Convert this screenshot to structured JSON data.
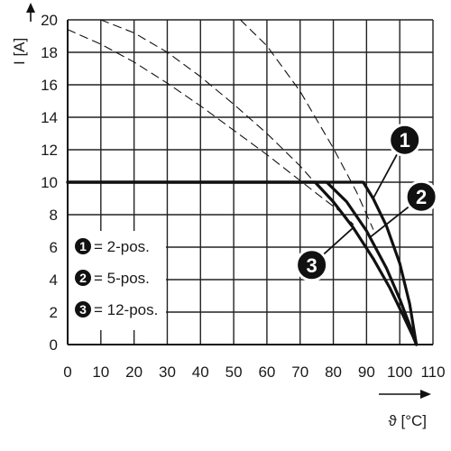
{
  "chart_data": {
    "type": "line",
    "xlabel": "ϑ [°C]",
    "ylabel": "I [A]",
    "xlim": [
      0,
      110
    ],
    "ylim": [
      0,
      20
    ],
    "x_ticks": [
      "0",
      "10",
      "20",
      "30",
      "40",
      "50",
      "60",
      "70",
      "80",
      "90",
      "100",
      "110"
    ],
    "y_ticks": [
      "0",
      "2",
      "4",
      "6",
      "8",
      "10",
      "12",
      "14",
      "16",
      "18",
      "20"
    ],
    "grid": true,
    "legend_placement": "bottom-left",
    "legend": [
      {
        "marker": "1",
        "label": "= 2-pos."
      },
      {
        "marker": "2",
        "label": "= 5-pos."
      },
      {
        "marker": "3",
        "label": "= 12-pos."
      }
    ],
    "series": [
      {
        "marker": "1",
        "style": "solid",
        "x": [
          0,
          89,
          92,
          96,
          100,
          103,
          105
        ],
        "y": [
          10,
          10,
          9,
          7.3,
          5,
          2.5,
          0
        ]
      },
      {
        "marker": "2",
        "style": "solid",
        "x": [
          0,
          78,
          84,
          90,
          96,
          100,
          103,
          105
        ],
        "y": [
          10,
          10,
          8.8,
          7,
          4.7,
          2.8,
          1.2,
          0
        ]
      },
      {
        "marker": "3",
        "style": "solid",
        "x": [
          0,
          74.5,
          80,
          86,
          92,
          97,
          101,
          104,
          105
        ],
        "y": [
          10,
          10,
          8.8,
          7.2,
          5.3,
          3.5,
          1.8,
          0.5,
          0
        ]
      },
      {
        "marker": "1",
        "style": "dashed",
        "x": [
          52,
          60,
          70,
          80,
          87,
          92
        ],
        "y": [
          20,
          18.4,
          15.6,
          12.1,
          9.4,
          7.1
        ]
      },
      {
        "marker": "2",
        "style": "dashed",
        "x": [
          10,
          20,
          30,
          40,
          50,
          60,
          70,
          80,
          86
        ],
        "y": [
          20,
          19.2,
          18,
          16.5,
          14.8,
          13,
          11,
          8.7,
          7.4
        ]
      },
      {
        "marker": "3",
        "style": "dashed",
        "x": [
          0,
          10,
          20,
          30,
          40,
          50,
          60,
          70,
          75,
          82
        ],
        "y": [
          19.4,
          18.5,
          17.4,
          16.1,
          14.7,
          13.2,
          11.7,
          10.1,
          9.3,
          8.2
        ]
      }
    ],
    "callouts": [
      {
        "marker": "1",
        "x": 101.5,
        "y": 12.6,
        "target_x": 92,
        "target_y": 9.0
      },
      {
        "marker": "2",
        "x": 106.5,
        "y": 9.1,
        "target_x": 91,
        "target_y": 6.6
      },
      {
        "marker": "3",
        "x": 73.5,
        "y": 4.9,
        "target_x": 86,
        "target_y": 7.2
      }
    ],
    "colors": {
      "line": "#111111",
      "grid": "#222222",
      "background": "#ffffff"
    }
  }
}
